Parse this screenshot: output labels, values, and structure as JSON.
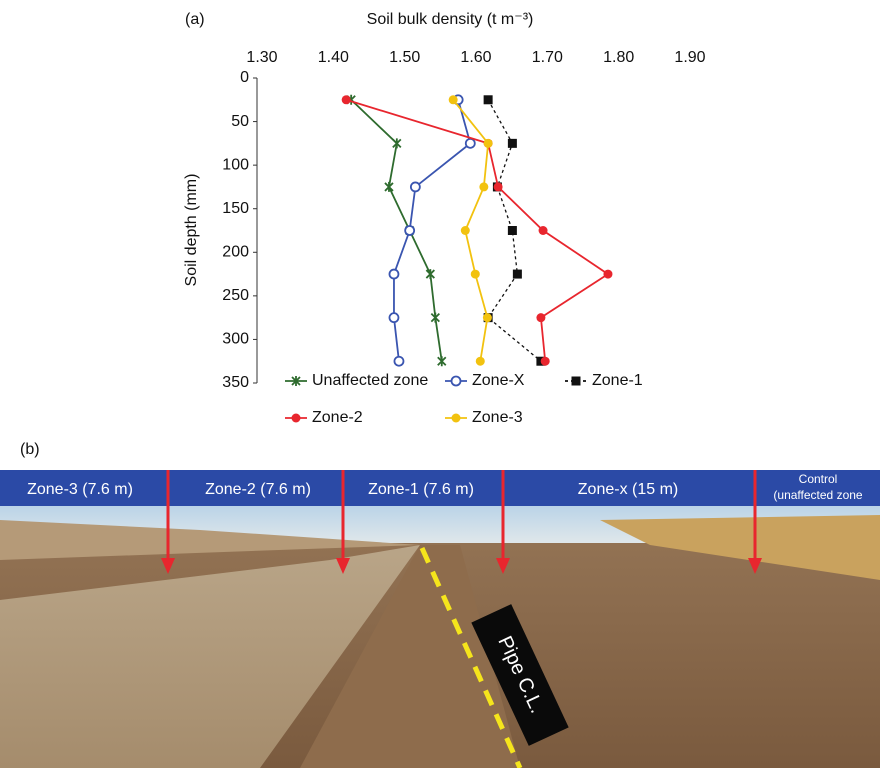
{
  "panel_a_label": "(a)",
  "chart_data": {
    "type": "line",
    "title": "Soil bulk density (t m⁻³)",
    "y_label": "Soil depth (mm)",
    "y": [
      25,
      75,
      125,
      175,
      225,
      275,
      325
    ],
    "xlim": [
      1.3,
      1.9
    ],
    "xticks": [
      {
        "value": 1.3,
        "label": "1.30"
      },
      {
        "value": 1.4,
        "label": "1.40"
      },
      {
        "value": 1.5,
        "label": "1.50"
      },
      {
        "value": 1.6,
        "label": "1.60"
      },
      {
        "value": 1.7,
        "label": "1.70"
      },
      {
        "value": 1.8,
        "label": "1.80"
      },
      {
        "value": 1.9,
        "label": "1.90"
      }
    ],
    "ylim": [
      0,
      350
    ],
    "yticks": [
      0,
      50,
      100,
      150,
      200,
      250,
      300,
      350
    ],
    "y_inverted": true,
    "x_axis_position": "top",
    "series": [
      {
        "name": "Unaffected zone",
        "color": "#2e6b2e",
        "marker": "star",
        "dashed": false,
        "values": [
          1.425,
          1.489,
          1.478,
          1.507,
          1.536,
          1.543,
          1.552
        ]
      },
      {
        "name": "Zone-X",
        "color": "#3a55b0",
        "marker": "open-circle",
        "dashed": false,
        "values": [
          1.575,
          1.592,
          1.515,
          1.507,
          1.485,
          1.485,
          1.492
        ]
      },
      {
        "name": "Zone-1",
        "color": "#111111",
        "marker": "square",
        "dashed": true,
        "values": [
          1.617,
          1.651,
          1.63,
          1.651,
          1.658,
          1.617,
          1.691
        ]
      },
      {
        "name": "Zone-2",
        "color": "#e8262e",
        "marker": "circle",
        "dashed": false,
        "values": [
          1.418,
          1.617,
          1.631,
          1.694,
          1.785,
          1.691,
          1.697
        ]
      },
      {
        "name": "Zone-3",
        "color": "#f2c20f",
        "marker": "circle",
        "dashed": false,
        "values": [
          1.568,
          1.617,
          1.611,
          1.585,
          1.599,
          1.616,
          1.606
        ]
      }
    ]
  },
  "panel_b_label": "(b)",
  "photo": {
    "zones": [
      "Zone-3 (7.6 m)",
      "Zone-2 (7.6 m)",
      "Zone-1 (7.6 m)",
      "Zone-x (15 m)"
    ],
    "control": [
      "Control",
      "(unaffected zone"
    ],
    "sign": "Pipe C.L."
  }
}
